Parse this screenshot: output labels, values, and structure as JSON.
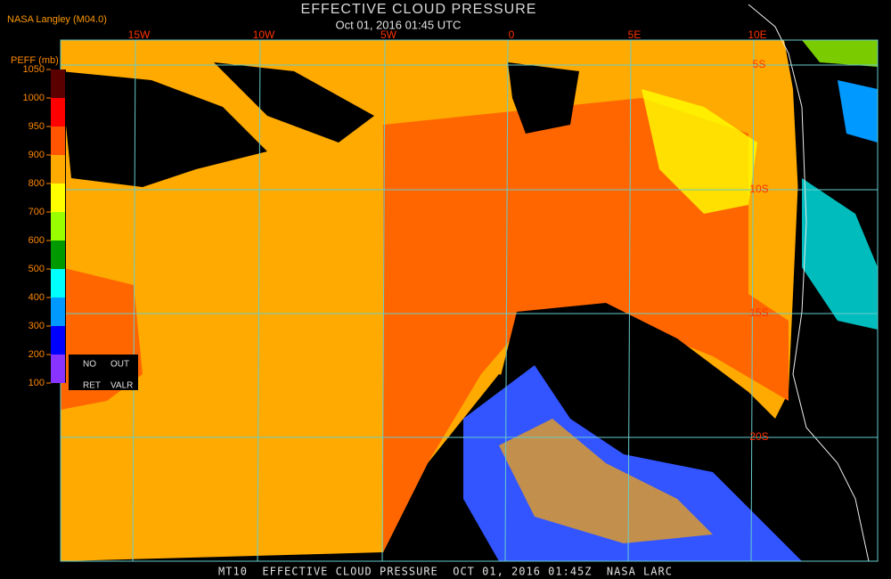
{
  "header": {
    "producer": "NASA Langley (M04.0)",
    "title": "EFFECTIVE CLOUD PRESSURE",
    "subtitle": "Oct 01, 2016 01:45 UTC"
  },
  "colorbar": {
    "label": "PEFF (mb)",
    "ticks": [
      1050,
      1000,
      950,
      900,
      800,
      700,
      600,
      500,
      400,
      300,
      200,
      100
    ],
    "colors": [
      "#5a0000",
      "#ff0000",
      "#ff5500",
      "#ffaa00",
      "#ffff00",
      "#99ff00",
      "#009900",
      "#00ffff",
      "#0099ff",
      "#0000ff",
      "#8833ff"
    ]
  },
  "flags": [
    "NO",
    "OUT",
    "RET",
    "VALR"
  ],
  "grid": {
    "longitudes": [
      "15W",
      "10W",
      "5W",
      "0",
      "5E",
      "10E"
    ],
    "latitudes": [
      "5S",
      "10S",
      "15S",
      "20S"
    ]
  },
  "footer": "MT10  EFFECTIVE CLOUD PRESSURE  OCT 01, 2016 01:45Z  NASA LARC"
}
